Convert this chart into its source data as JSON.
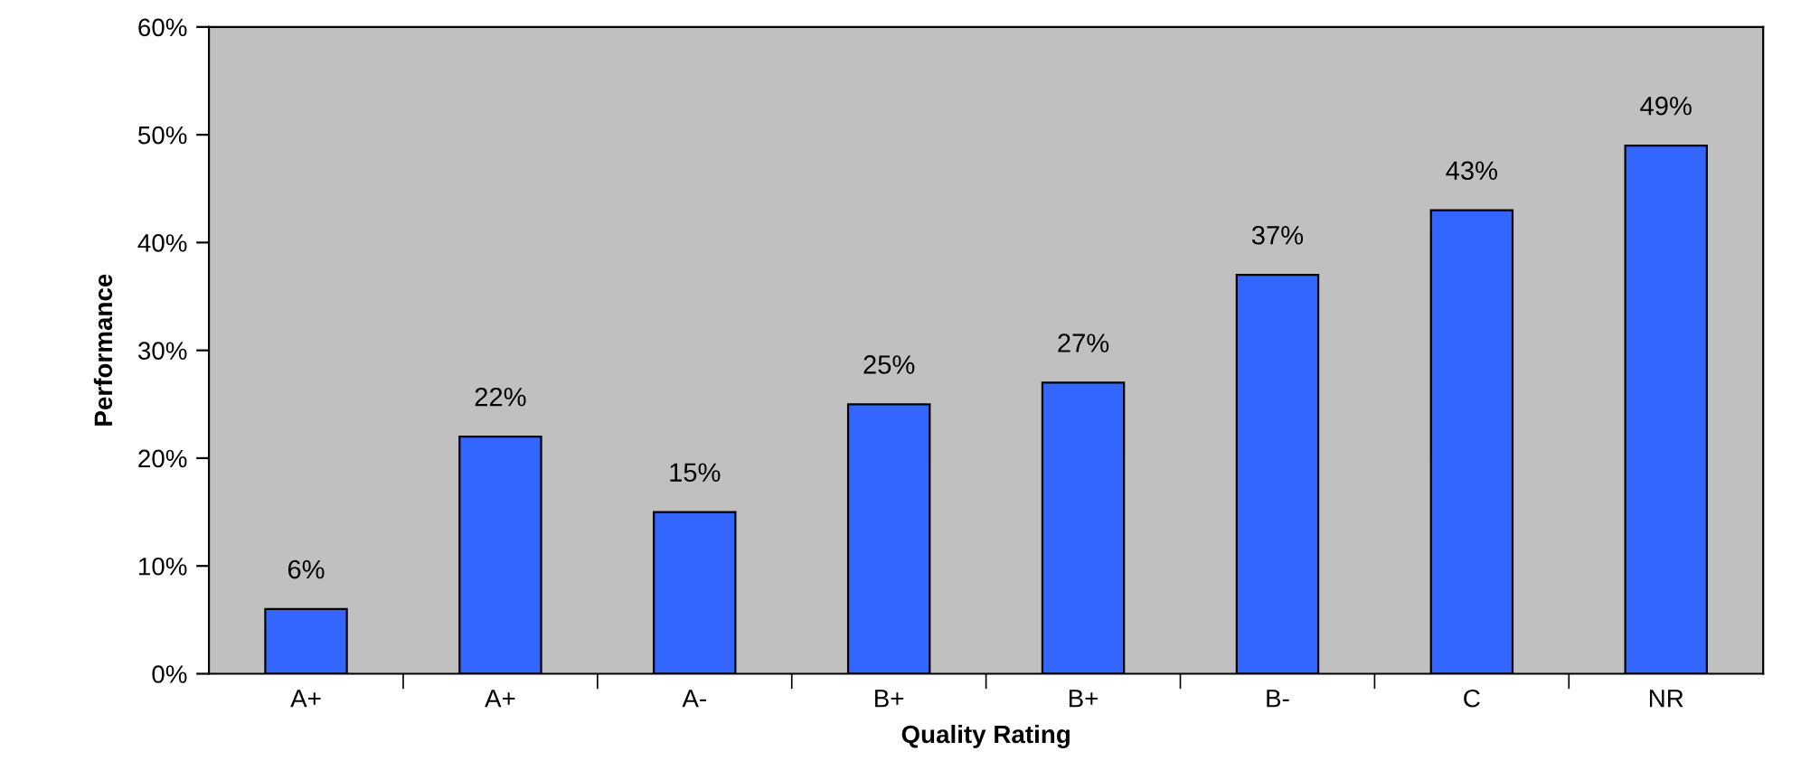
{
  "chart_data": {
    "type": "bar",
    "xlabel": "Quality Rating",
    "ylabel": "Performance",
    "categories": [
      "A+",
      "A+",
      "A-",
      "B+",
      "B+",
      "B-",
      "C",
      "NR"
    ],
    "values": [
      6,
      22,
      15,
      25,
      27,
      37,
      43,
      49
    ],
    "value_labels": [
      "6%",
      "22%",
      "15%",
      "25%",
      "27%",
      "37%",
      "43%",
      "49%"
    ],
    "color": "#3366ff",
    "ylim": [
      0,
      60
    ],
    "yticks": [
      {
        "value": 0,
        "label": "0%"
      },
      {
        "value": 10,
        "label": "10%"
      },
      {
        "value": 20,
        "label": "20%"
      },
      {
        "value": 30,
        "label": "30%"
      },
      {
        "value": 40,
        "label": "40%"
      },
      {
        "value": 50,
        "label": "50%"
      },
      {
        "value": 60,
        "label": "60%"
      }
    ],
    "grid": false
  }
}
